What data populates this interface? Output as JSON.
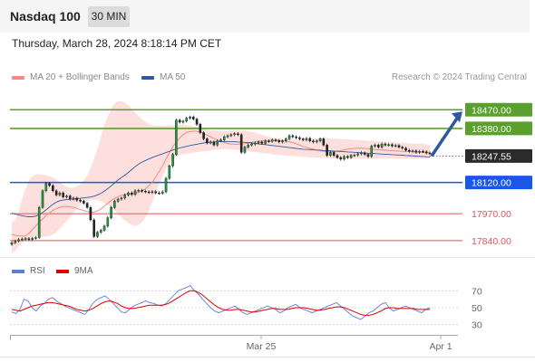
{
  "header": {
    "title": "Nasdaq 100",
    "timeframe": "30 MIN",
    "datetime": "Thursday, March 28, 2024 8:18:14 PM CET"
  },
  "legend": {
    "bb_label": "MA 20 + Bollinger Bands",
    "bb_color": "#f28b82",
    "ma50_label": "MA 50",
    "ma50_color": "#2c5aa0",
    "credit": "Research © 2024 Trading Central"
  },
  "rsi_legend": {
    "rsi_label": "RSI",
    "rsi_color": "#5b7fd6",
    "ma_label": "9MA",
    "ma_color": "#e00000"
  },
  "chart_data": {
    "type": "candlestick",
    "instrument": "Nasdaq 100",
    "interval": "30 MIN",
    "ylim": [
      17770,
      18580
    ],
    "x_ticks": [
      "Mar 25",
      "Apr 1"
    ],
    "last_price": "18247.55",
    "levels": [
      {
        "label": "18470.00",
        "value": 18470,
        "kind": "resistance",
        "color": "#5aa02c"
      },
      {
        "label": "18380.00",
        "value": 18380,
        "kind": "resistance",
        "color": "#5aa02c"
      },
      {
        "label": "18120.00",
        "value": 18120,
        "kind": "pivot",
        "color": "#1a56e8"
      },
      {
        "label": "17970.00",
        "value": 17970,
        "kind": "support",
        "color": "#e05555"
      },
      {
        "label": "17840.00",
        "value": 17840,
        "kind": "support",
        "color": "#e05555"
      }
    ],
    "closes": [
      17830,
      17838,
      17845,
      17848,
      17850,
      17845,
      17852,
      17855,
      18000,
      18080,
      18115,
      18105,
      18080,
      18060,
      18070,
      18050,
      18055,
      18040,
      18045,
      18035,
      18030,
      18020,
      18000,
      17940,
      17860,
      17880,
      17890,
      17910,
      17950,
      18000,
      18030,
      18040,
      18045,
      18060,
      18070,
      18062,
      18080,
      18082,
      18078,
      18075,
      18072,
      18076,
      18070,
      18068,
      18075,
      18140,
      18200,
      18255,
      18420,
      18410,
      18415,
      18430,
      18435,
      18425,
      18400,
      18360,
      18330,
      18310,
      18315,
      18300,
      18320,
      18325,
      18340,
      18345,
      18350,
      18355,
      18350,
      18265,
      18290,
      18300,
      18305,
      18310,
      18315,
      18308,
      18320,
      18318,
      18325,
      18322,
      18315,
      18320,
      18330,
      18345,
      18340,
      18335,
      18330,
      18325,
      18332,
      18320,
      18315,
      18320,
      18330,
      18300,
      18250,
      18265,
      18250,
      18240,
      18232,
      18245,
      18240,
      18250,
      18252,
      18258,
      18262,
      18255,
      18245,
      18295,
      18300,
      18290,
      18305,
      18300,
      18302,
      18296,
      18298,
      18290,
      18285,
      18275,
      18270,
      18272,
      18265,
      18270,
      18268,
      18262,
      18260
    ],
    "ma20": [
      17870,
      17866,
      17863,
      17862,
      17863,
      17875,
      17893,
      17912,
      17928,
      17944,
      17960,
      17974,
      17985,
      17994,
      18000,
      18004,
      18005,
      18003,
      18000,
      17995,
      17990,
      17985,
      17980,
      17978,
      17978,
      17982,
      17992,
      18006,
      18020,
      18032,
      18043,
      18052,
      18058,
      18062,
      18064,
      18066,
      18068,
      18072,
      18079,
      18090,
      18105,
      18122,
      18145,
      18172,
      18200,
      18232,
      18264,
      18292,
      18316,
      18335,
      18350,
      18360,
      18365,
      18367,
      18366,
      18362,
      18356,
      18348,
      18340,
      18332,
      18325,
      18318,
      18312,
      18308,
      18305,
      18304,
      18304,
      18305,
      18307,
      18310,
      18313,
      18316,
      18318,
      18320,
      18321,
      18322,
      18322,
      18322,
      18322,
      18321,
      18319,
      18316,
      18312,
      18306,
      18300,
      18294,
      18289,
      18284,
      18280,
      18276,
      18273,
      18270,
      18268,
      18268,
      18269,
      18271,
      18274,
      18277,
      18280,
      18282,
      18284,
      18285,
      18285,
      18284,
      18283,
      18281,
      18279,
      18277,
      18276,
      18275,
      18274,
      18273,
      18272,
      18271,
      18270,
      18270,
      18269,
      18268,
      18267,
      18266,
      18265,
      18264,
      18263
    ],
    "bb_upper": [
      17930,
      17940,
      17980,
      18040,
      18090,
      18130,
      18150,
      18160,
      18160,
      18158,
      18155,
      18150,
      18145,
      18135,
      18122,
      18110,
      18100,
      18095,
      18095,
      18100,
      18112,
      18130,
      18155,
      18190,
      18235,
      18285,
      18340,
      18395,
      18440,
      18475,
      18500,
      18510,
      18512,
      18505,
      18492,
      18475,
      18458,
      18440,
      18425,
      18412,
      18402,
      18396,
      18393,
      18392,
      18392,
      18393,
      18395,
      18397,
      18398,
      18399,
      18398,
      18396,
      18394,
      18390,
      18386,
      18382,
      18378,
      18375,
      18372,
      18370,
      18369,
      18368,
      18368,
      18368,
      18369,
      18370,
      18370,
      18370,
      18369,
      18367,
      18364,
      18360,
      18355,
      18350,
      18345,
      18340,
      18336,
      18333,
      18330,
      18328,
      18327,
      18326,
      18326,
      18326,
      18327,
      18328,
      18329,
      18330,
      18331,
      18332,
      18333,
      18333,
      18333,
      18332,
      18331,
      18330,
      18329,
      18328,
      18327,
      18326,
      18325,
      18324,
      18323,
      18322,
      18321,
      18320,
      18319,
      18318,
      18317,
      18316,
      18315,
      18314,
      18313,
      18312,
      18311,
      18310,
      18309,
      18308,
      18307,
      18306,
      18305,
      18304,
      18303
    ],
    "bb_lower": [
      17780,
      17790,
      17810,
      17830,
      17845,
      17855,
      17860,
      17862,
      17860,
      17858,
      17858,
      17862,
      17870,
      17882,
      17897,
      17915,
      17935,
      17955,
      17975,
      17995,
      18010,
      18022,
      18030,
      18035,
      18037,
      18035,
      18030,
      18022,
      18012,
      18000,
      17985,
      17968,
      17952,
      17938,
      17925,
      17916,
      17912,
      17915,
      17928,
      17952,
      17985,
      18025,
      18068,
      18110,
      18150,
      18185,
      18212,
      18232,
      18245,
      18252,
      18256,
      18259,
      18262,
      18264,
      18266,
      18268,
      18270,
      18272,
      18274,
      18276,
      18278,
      18279,
      18280,
      18280,
      18279,
      18278,
      18276,
      18274,
      18272,
      18270,
      18268,
      18266,
      18264,
      18262,
      18260,
      18258,
      18256,
      18254,
      18252,
      18250,
      18249,
      18248,
      18247,
      18246,
      18245,
      18244,
      18243,
      18242,
      18241,
      18240,
      18239,
      18238,
      18237,
      18236,
      18235,
      18235,
      18235,
      18235,
      18235,
      18235,
      18235,
      18235,
      18235,
      18235,
      18235,
      18235,
      18235,
      18235,
      18235,
      18235,
      18235,
      18235,
      18235,
      18235,
      18235,
      18235,
      18235,
      18235,
      18235,
      18235,
      18235,
      18235,
      18235
    ],
    "ma50": [
      17972,
      17968,
      17964,
      17960,
      17957,
      17955,
      17955,
      17958,
      17965,
      17975,
      17988,
      18002,
      18015,
      18025,
      18032,
      18036,
      18038,
      18039,
      18040,
      18042,
      18044,
      18046,
      18048,
      18050,
      18054,
      18060,
      18068,
      18078,
      18090,
      18104,
      18118,
      18132,
      18144,
      18155,
      18168,
      18182,
      18196,
      18208,
      18218,
      18226,
      18233,
      18240,
      18246,
      18252,
      18258,
      18264,
      18270,
      18276,
      18281,
      18286,
      18290,
      18294,
      18298,
      18301,
      18304,
      18307,
      18310,
      18312,
      18314,
      18315,
      18316,
      18317,
      18317,
      18317,
      18317,
      18316,
      18315,
      18314,
      18313,
      18312,
      18310,
      18308,
      18306,
      18304,
      18302,
      18300,
      18298,
      18296,
      18294,
      18292,
      18290,
      18288,
      18286,
      18284,
      18282,
      18280,
      18279,
      18278,
      18277,
      18276,
      18275,
      18274,
      18273,
      18272,
      18271,
      18270,
      18269,
      18268,
      18267,
      18266,
      18265,
      18264,
      18263,
      18262,
      18261,
      18260,
      18259,
      18258,
      18257,
      18256,
      18255,
      18254,
      18253,
      18252,
      18251,
      18250,
      18249,
      18248,
      18247,
      18246,
      18245,
      18244,
      18243
    ],
    "rsi": {
      "ylim": [
        20,
        80
      ],
      "ticks": [
        70,
        50,
        30
      ],
      "rsi": [
        45,
        43,
        48,
        60,
        58,
        50,
        46,
        52,
        55,
        60,
        62,
        58,
        55,
        52,
        50,
        48,
        46,
        44,
        42,
        48,
        55,
        60,
        62,
        64,
        60,
        55,
        50,
        45,
        44,
        48,
        52,
        54,
        56,
        58,
        56,
        55,
        53,
        52,
        55,
        60,
        65,
        70,
        72,
        74,
        76,
        70,
        66,
        60,
        55,
        50,
        46,
        44,
        46,
        48,
        50,
        52,
        48,
        44,
        42,
        44,
        46,
        48,
        50,
        52,
        50,
        48,
        44,
        46,
        50,
        52,
        54,
        50,
        48,
        46,
        44,
        46,
        48,
        50,
        52,
        54,
        56,
        52,
        48,
        44,
        40,
        38,
        36,
        40,
        44,
        46,
        50,
        54,
        56,
        50,
        46,
        48,
        50,
        52,
        50,
        48,
        46,
        44,
        48,
        50
      ],
      "ma9": [
        48,
        47,
        46,
        48,
        50,
        52,
        53,
        54,
        55,
        56,
        56,
        55,
        54,
        53,
        52,
        50,
        48,
        47,
        46,
        47,
        49,
        52,
        55,
        57,
        58,
        57,
        55,
        52,
        50,
        49,
        49,
        50,
        51,
        52,
        53,
        53,
        53,
        53,
        54,
        56,
        59,
        62,
        65,
        68,
        70,
        70,
        68,
        65,
        61,
        57,
        53,
        50,
        48,
        47,
        47,
        48,
        48,
        47,
        46,
        45,
        45,
        46,
        47,
        48,
        49,
        49,
        48,
        48,
        48,
        49,
        50,
        50,
        50,
        49,
        48,
        47,
        47,
        48,
        49,
        50,
        51,
        51,
        50,
        48,
        46,
        44,
        42,
        41,
        41,
        42,
        44,
        46,
        49,
        50,
        50,
        49,
        49,
        49,
        49,
        49,
        48,
        48,
        48,
        48
      ]
    }
  }
}
